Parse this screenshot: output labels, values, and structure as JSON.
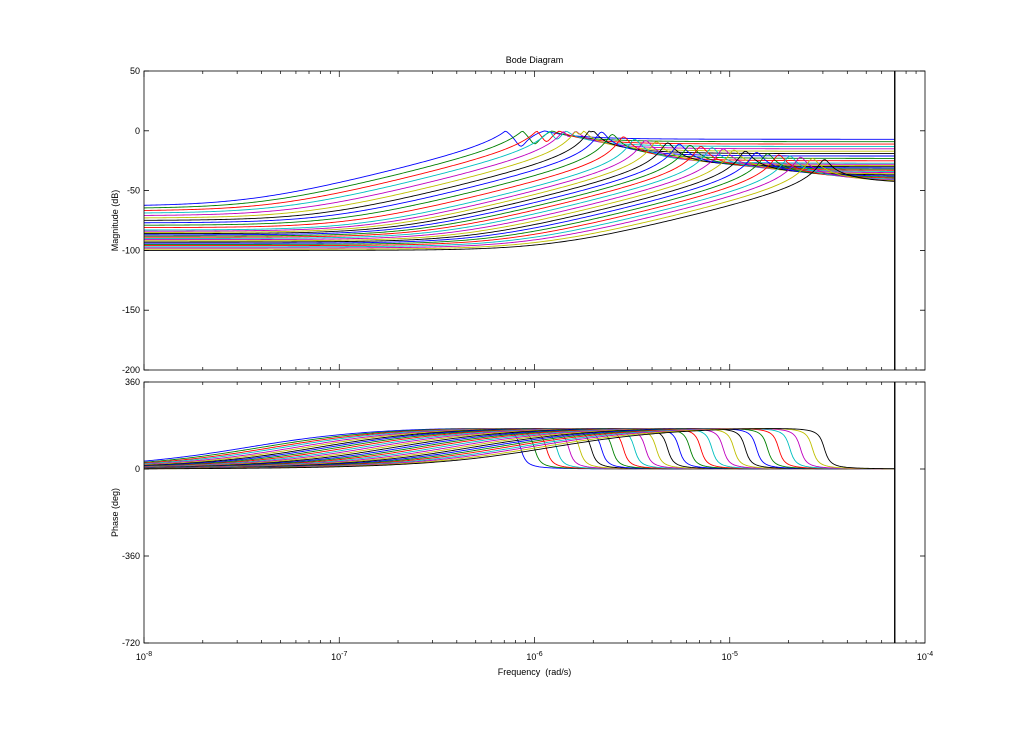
{
  "chart_data": {
    "type": "line",
    "title": "Bode Diagram",
    "xlabel": "Frequency  (rad/s)",
    "x_scale": "log",
    "xlim": [
      1e-08,
      0.0001
    ],
    "x_ticks": [
      {
        "value": 1e-08,
        "base": "10",
        "exp": "-8"
      },
      {
        "value": 1e-07,
        "base": "10",
        "exp": "-7"
      },
      {
        "value": 1e-06,
        "base": "10",
        "exp": "-6"
      },
      {
        "value": 1e-05,
        "base": "10",
        "exp": "-5"
      },
      {
        "value": 0.0001,
        "base": "10",
        "exp": "-4"
      }
    ],
    "vertical_marker_x": 7e-05,
    "grid": false,
    "series_colors": [
      "#0000ff",
      "#008000",
      "#ff0000",
      "#00bfbf",
      "#bf00bf",
      "#bfbf00",
      "#000000"
    ],
    "resonance_frequencies": [
      8.5e-07,
      1e-06,
      1.15e-06,
      1.3e-06,
      1.5e-06,
      1.7e-06,
      1.95e-06,
      2.2e-06,
      2.5e-06,
      2.85e-06,
      3.25e-06,
      3.7e-06,
      4.2e-06,
      4.8e-06,
      5.5e-06,
      6.25e-06,
      7.1e-06,
      8.1e-06,
      9.25e-06,
      1.05e-05,
      1.2e-05,
      1.37e-05,
      1.56e-05,
      1.78e-05,
      2.03e-05,
      2.3e-05,
      2.65e-05,
      3.05e-05
    ],
    "low_frequency_magnitude_db": [
      -63,
      -65,
      -67,
      -69,
      -71,
      -73,
      -75,
      -77,
      -79,
      -81,
      -83,
      -84,
      -85,
      -86,
      -87,
      -88,
      -89,
      -90,
      -91,
      -92,
      -93,
      -94,
      -95,
      -96,
      -97,
      -98,
      -99,
      -100
    ],
    "magnitude": {
      "ylabel": "Magnitude (dB)",
      "ylim": [
        -200,
        50
      ],
      "y_ticks": [
        50,
        0,
        -50,
        -100,
        -150,
        -200
      ]
    },
    "phase": {
      "ylabel": "Phase (deg)",
      "ylim": [
        -720,
        360
      ],
      "y_ticks": [
        360,
        0,
        -360,
        -720
      ]
    }
  }
}
